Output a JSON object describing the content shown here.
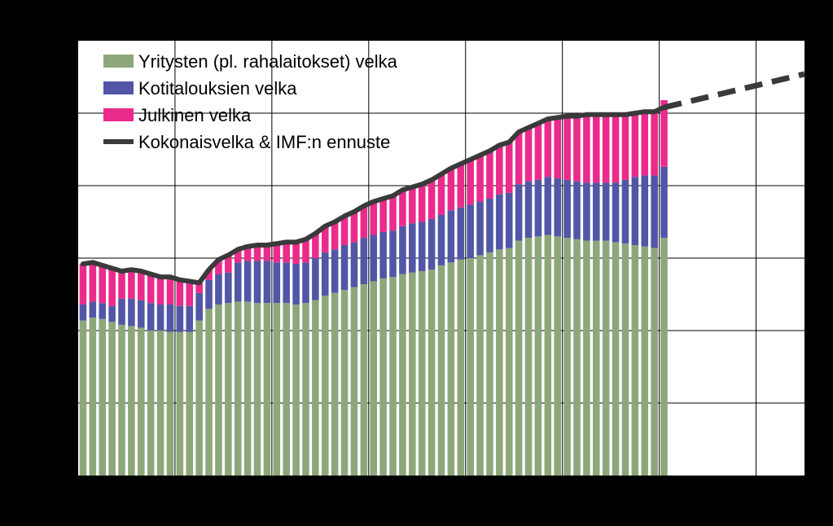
{
  "chart_data": {
    "type": "bar",
    "stacked": true,
    "grid": true,
    "legend_position": "top-left",
    "ylim": [
      0,
      300
    ],
    "xlim": [
      0,
      75
    ],
    "n_bars": 61,
    "legend": [
      {
        "label": "Yritysten (pl. rahalaitokset) velka",
        "color": "#8DA77B",
        "kind": "bar"
      },
      {
        "label": "Kotitalouksien velka",
        "color": "#5256A6",
        "kind": "bar"
      },
      {
        "label": "Julkinen velka",
        "color": "#EB2B8C",
        "kind": "bar"
      },
      {
        "label": "Kokonaisvelka & IMF:n ennuste",
        "color": "#3A3A3A",
        "kind": "line"
      }
    ],
    "series": [
      {
        "name": "Yritysten (pl. rahalaitokset) velka",
        "color": "#8DA77B",
        "values": [
          107,
          109,
          108,
          106,
          104,
          103,
          102,
          100,
          100,
          99,
          99,
          99,
          107,
          115,
          118,
          119,
          120,
          120,
          119,
          119,
          119,
          119,
          118,
          119,
          121,
          124,
          126,
          128,
          130,
          132,
          134,
          136,
          137,
          139,
          140,
          141,
          142,
          145,
          147,
          149,
          150,
          152,
          154,
          156,
          157,
          162,
          164,
          165,
          166,
          165,
          164,
          163,
          162,
          162,
          162,
          161,
          160,
          159,
          158,
          157,
          164
        ]
      },
      {
        "name": "Kotitalouksien velka",
        "color": "#5256A6",
        "values": [
          11,
          11,
          11,
          11,
          18,
          19,
          19,
          19,
          18,
          19,
          18,
          18,
          19,
          20,
          21,
          21,
          27,
          28,
          29,
          29,
          28,
          28,
          28,
          28,
          29,
          30,
          30,
          31,
          31,
          32,
          32,
          32,
          32,
          33,
          34,
          34,
          35,
          35,
          36,
          36,
          37,
          37,
          37,
          38,
          38,
          39,
          39,
          39,
          40,
          40,
          40,
          40,
          40,
          40,
          40,
          41,
          44,
          47,
          49,
          50,
          49
        ]
      },
      {
        "name": "Julkinen velka",
        "color": "#EB2B8C",
        "values": [
          28,
          27,
          26,
          26,
          19,
          20,
          20,
          20,
          19,
          19,
          18,
          17,
          7,
          7,
          10,
          12,
          9,
          10,
          11,
          12,
          13,
          14,
          15,
          16,
          17,
          18,
          19,
          20,
          21,
          22,
          23,
          23,
          24,
          25,
          25,
          26,
          27,
          28,
          29,
          30,
          31,
          32,
          33,
          34,
          35,
          36,
          37,
          39,
          40,
          42,
          44,
          45,
          46,
          47,
          47,
          47,
          45,
          44,
          44,
          44,
          46
        ]
      }
    ],
    "total_line": {
      "name": "Kokonaisvelka & IMF:n ennuste",
      "color": "#3A3A3A",
      "values": [
        146,
        147,
        145,
        143,
        141,
        142,
        141,
        139,
        137,
        137,
        135,
        134,
        133,
        142,
        149,
        152,
        156,
        158,
        159,
        159,
        160,
        161,
        161,
        163,
        167,
        172,
        175,
        179,
        182,
        186,
        189,
        191,
        193,
        197,
        199,
        201,
        204,
        208,
        212,
        215,
        218,
        221,
        224,
        228,
        230,
        237,
        240,
        243,
        246,
        247,
        248,
        248,
        249,
        249,
        249,
        249,
        249,
        250,
        251,
        251,
        254
      ]
    },
    "forecast_line": {
      "name": "Kokonaisvelka & IMF:n ennuste",
      "dashed": true,
      "x": [
        61,
        75
      ],
      "values": [
        254,
        277
      ]
    }
  }
}
